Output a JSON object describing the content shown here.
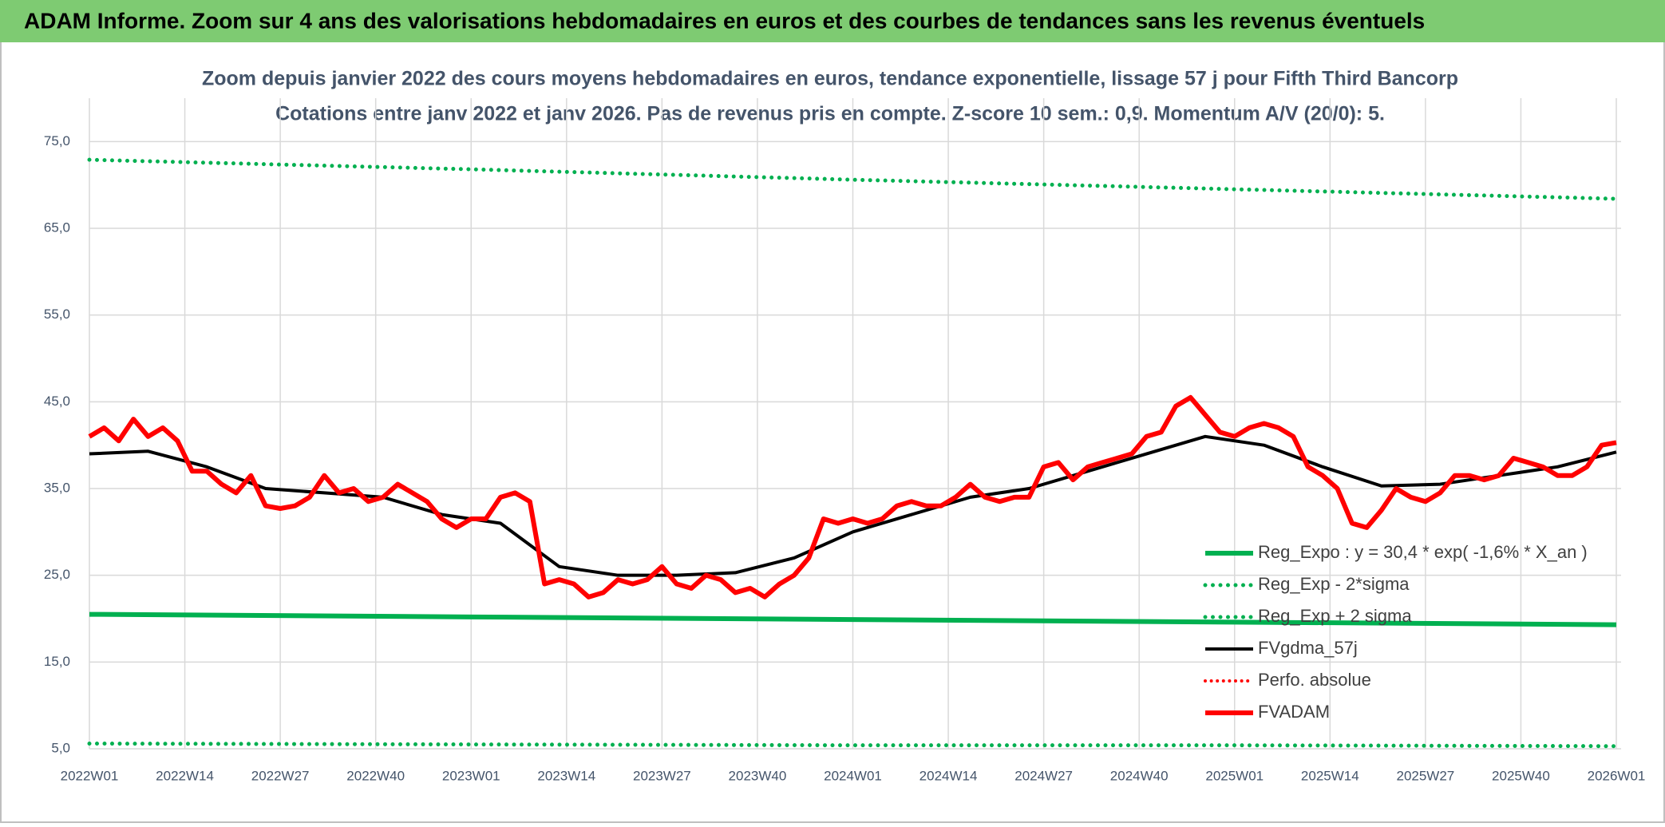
{
  "header": {
    "title": "ADAM Informe. Zoom sur 4 ans des valorisations hebdomadaires en euros et des courbes de tendances sans les revenus éventuels"
  },
  "chart_data": {
    "type": "line",
    "title": "Zoom depuis janvier 2022 des cours moyens hebdomadaires en euros, tendance exponentielle, lissage 57 j pour Fifth Third Bancorp",
    "subtitle": "Cotations entre janv 2022 et janv 2026. Pas de revenus pris en compte. Z-score 10 sem.: 0,9. Momentum A/V (20/0): 5.",
    "xlim": [
      0,
      208
    ],
    "xticks": [
      {
        "value": 0,
        "label": "2022W01"
      },
      {
        "value": 13,
        "label": "2022W14"
      },
      {
        "value": 26,
        "label": "2022W27"
      },
      {
        "value": 39,
        "label": "2022W40"
      },
      {
        "value": 52,
        "label": "2023W01"
      },
      {
        "value": 65,
        "label": "2023W14"
      },
      {
        "value": 78,
        "label": "2023W27"
      },
      {
        "value": 91,
        "label": "2023W40"
      },
      {
        "value": 104,
        "label": "2024W01"
      },
      {
        "value": 117,
        "label": "2024W14"
      },
      {
        "value": 130,
        "label": "2024W27"
      },
      {
        "value": 143,
        "label": "2024W40"
      },
      {
        "value": 156,
        "label": "2025W01"
      },
      {
        "value": 169,
        "label": "2025W14"
      },
      {
        "value": 182,
        "label": "2025W27"
      },
      {
        "value": 195,
        "label": "2025W40"
      },
      {
        "value": 208,
        "label": "2026W01"
      }
    ],
    "ylim": [
      5,
      80
    ],
    "yticks": [
      {
        "value": 5,
        "label": "5,0"
      },
      {
        "value": 15,
        "label": "15,0"
      },
      {
        "value": 25,
        "label": "25,0"
      },
      {
        "value": 35,
        "label": "35,0"
      },
      {
        "value": 45,
        "label": "45,0"
      },
      {
        "value": 55,
        "label": "55,0"
      },
      {
        "value": 65,
        "label": "65,0"
      },
      {
        "value": 75,
        "label": "75,0"
      }
    ],
    "grid": true,
    "legend": "right",
    "series": [
      {
        "name": "Reg_Expo : y = 30,4 * exp( -1,6% *  X_an )",
        "color": "#00b050",
        "style": "solid",
        "width": 6,
        "x": [
          0,
          52,
          104,
          156,
          208
        ],
        "values": [
          20.5,
          20.2,
          19.9,
          19.6,
          19.3
        ]
      },
      {
        "name": "Reg_Exp - 2*sigma",
        "color": "#00b050",
        "style": "dotted",
        "width": 5,
        "x": [
          0,
          52,
          104,
          156,
          208
        ],
        "values": [
          5.6,
          5.5,
          5.4,
          5.4,
          5.3
        ]
      },
      {
        "name": "Reg_Exp + 2 sigma",
        "color": "#00b050",
        "style": "dotted",
        "width": 5,
        "x": [
          0,
          52,
          104,
          156,
          208
        ],
        "values": [
          72.9,
          71.8,
          70.6,
          69.5,
          68.4
        ]
      },
      {
        "name": "FVgdma_57j",
        "color": "#000000",
        "style": "solid",
        "width": 4,
        "x": [
          0,
          8,
          16,
          24,
          32,
          40,
          48,
          56,
          64,
          72,
          80,
          88,
          96,
          104,
          112,
          120,
          128,
          136,
          144,
          152,
          160,
          168,
          176,
          184,
          192,
          200,
          208
        ],
        "values": [
          39,
          39.3,
          37.5,
          35,
          34.5,
          34,
          32,
          31,
          26,
          25,
          25,
          25.3,
          27,
          30,
          32,
          34,
          35,
          37,
          39,
          41,
          40,
          37.5,
          35.3,
          35.5,
          36.5,
          37.5,
          39.2
        ]
      },
      {
        "name": "Perfo. absolue",
        "color": "#ff0000",
        "style": "dotted",
        "width": 4,
        "x": [],
        "values": []
      },
      {
        "name": "FVADAM",
        "color": "#ff0000",
        "style": "solid",
        "width": 6,
        "x": [
          0,
          2,
          4,
          6,
          8,
          10,
          12,
          14,
          16,
          18,
          20,
          22,
          24,
          26,
          28,
          30,
          32,
          34,
          36,
          38,
          40,
          42,
          44,
          46,
          48,
          50,
          52,
          54,
          56,
          58,
          60,
          62,
          64,
          66,
          68,
          70,
          72,
          74,
          76,
          78,
          80,
          82,
          84,
          86,
          88,
          90,
          92,
          94,
          96,
          98,
          100,
          102,
          104,
          106,
          108,
          110,
          112,
          114,
          116,
          118,
          120,
          122,
          124,
          126,
          128,
          130,
          132,
          134,
          136,
          138,
          140,
          142,
          144,
          146,
          148,
          150,
          152,
          154,
          156,
          158,
          160,
          162,
          164,
          166,
          168,
          170,
          172,
          174,
          176,
          178,
          180,
          182,
          184,
          186,
          188,
          190,
          192,
          194,
          196,
          198,
          200,
          202,
          204,
          206,
          208
        ],
        "values": [
          41,
          42,
          40.5,
          43,
          41,
          42,
          40.5,
          37,
          37,
          35.5,
          34.5,
          36.5,
          33,
          32.7,
          33,
          34,
          36.5,
          34.5,
          35,
          33.5,
          34,
          35.5,
          34.5,
          33.5,
          31.5,
          30.5,
          31.5,
          31.5,
          34,
          34.5,
          33.5,
          24,
          24.5,
          24,
          22.5,
          23,
          24.5,
          24,
          24.5,
          26,
          24,
          23.5,
          25,
          24.5,
          23,
          23.5,
          22.5,
          24,
          25,
          27,
          31.5,
          31,
          31.5,
          31,
          31.5,
          33,
          33.5,
          33,
          33,
          34,
          35.5,
          34,
          33.5,
          34,
          34,
          37.5,
          38,
          36,
          37.5,
          38,
          38.5,
          39,
          41,
          41.5,
          44.5,
          45.5,
          43.5,
          41.5,
          41,
          42,
          42.5,
          42,
          41,
          37.5,
          36.5,
          35,
          31,
          30.5,
          32.5,
          35,
          34,
          33.5,
          34.5,
          36.5,
          36.5,
          36,
          36.5,
          38.5,
          38,
          37.5,
          36.5,
          36.5,
          37.5,
          40,
          40.3
        ]
      }
    ]
  }
}
